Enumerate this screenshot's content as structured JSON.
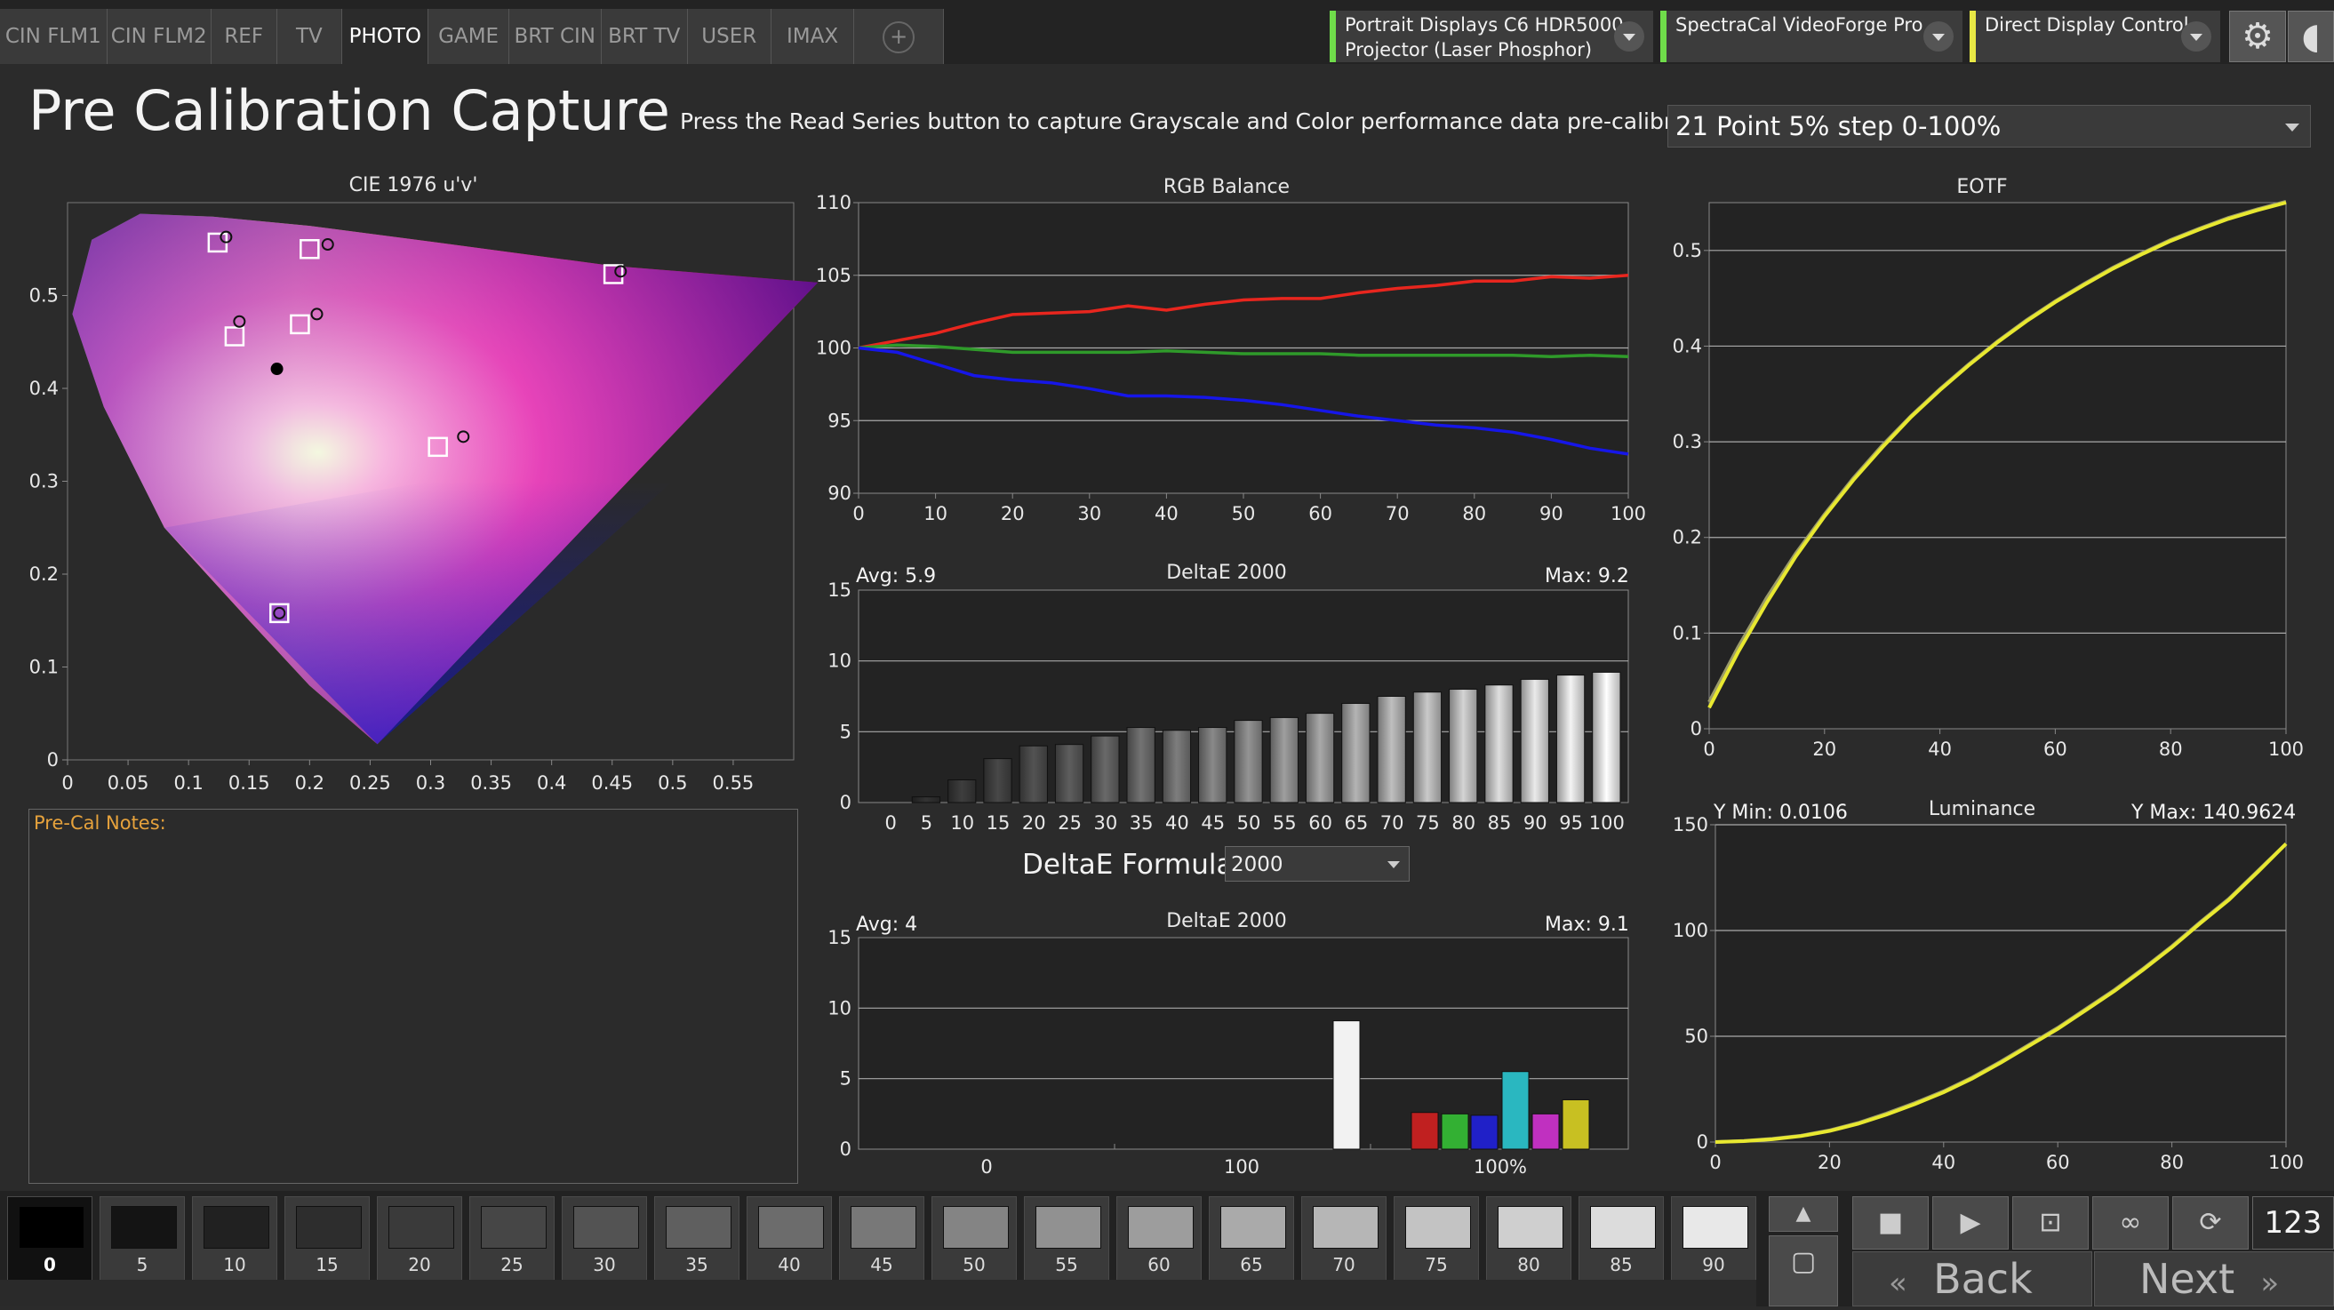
{
  "tabs": [
    "CIN FLM1",
    "CIN FLM2",
    "REF",
    "TV",
    "PHOTO",
    "GAME",
    "BRT CIN",
    "BRT TV",
    "USER",
    "IMAX",
    "+"
  ],
  "active_tab": "PHOTO",
  "devices": [
    {
      "line1": "Portrait Displays C6 HDR5000",
      "line2": "Projector (Laser Phosphor)",
      "color": "#6fdc4a"
    },
    {
      "line1": "SpectraCal VideoForge Pro",
      "line2": "",
      "color": "#6fdc4a"
    },
    {
      "line1": "Direct Display Control",
      "line2": "",
      "color": "#e8e845"
    }
  ],
  "settings_icon": "gear-icon",
  "header": {
    "title": "Pre Calibration Capture",
    "instruction": "Press the Read Series button to capture Grayscale and Color performance data pre-calibration.",
    "series_select": "21 Point 5% step 0-100%"
  },
  "cie": {
    "title": "CIE 1976 u'v'",
    "xticks": [
      "0",
      "0.05",
      "0.1",
      "0.15",
      "0.2",
      "0.25",
      "0.3",
      "0.35",
      "0.4",
      "0.45",
      "0.5",
      "0.55"
    ],
    "yticks": [
      "0",
      "0.1",
      "0.2",
      "0.3",
      "0.4",
      "0.5"
    ]
  },
  "notes": {
    "label": "Pre-Cal Notes:"
  },
  "rgb_balance": {
    "title": "RGB Balance",
    "xticks": [
      "0",
      "10",
      "20",
      "30",
      "40",
      "50",
      "60",
      "70",
      "80",
      "90",
      "100"
    ],
    "yticks": [
      "90",
      "95",
      "100",
      "105",
      "110"
    ]
  },
  "deltae_gray": {
    "title": "DeltaE 2000",
    "avg": "Avg: 5.9",
    "max": "Max: 9.2",
    "yticks": [
      "0",
      "5",
      "10",
      "15"
    ],
    "xticks": [
      "0",
      "5",
      "10",
      "15",
      "20",
      "25",
      "30",
      "35",
      "40",
      "45",
      "50",
      "55",
      "60",
      "65",
      "70",
      "75",
      "80",
      "85",
      "90",
      "95",
      "100"
    ]
  },
  "formula": {
    "label": "DeltaE Formula",
    "value": "2000"
  },
  "deltae_color": {
    "title": "DeltaE 2000",
    "avg": "Avg: 4",
    "max": "Max: 9.1",
    "yticks": [
      "0",
      "5",
      "10",
      "15"
    ],
    "xticks": [
      "0",
      "100",
      "100%"
    ]
  },
  "eotf": {
    "title": "EOTF",
    "xticks": [
      "0",
      "20",
      "40",
      "60",
      "80",
      "100"
    ],
    "yticks": [
      "0",
      "0.1",
      "0.2",
      "0.3",
      "0.4",
      "0.5"
    ]
  },
  "luminance": {
    "title": "Luminance",
    "ymin": "Y Min: 0.0106",
    "ymax": "Y Max: 140.9624",
    "xticks": [
      "0",
      "20",
      "40",
      "60",
      "80",
      "100"
    ],
    "yticks": [
      "0",
      "50",
      "100",
      "150"
    ]
  },
  "swatches": [
    "0",
    "5",
    "10",
    "15",
    "20",
    "25",
    "30",
    "35",
    "40",
    "45",
    "50",
    "55",
    "60",
    "65",
    "70",
    "75",
    "80",
    "85",
    "90"
  ],
  "counter": "123",
  "nav": {
    "back": "Back",
    "next": "Next"
  },
  "chart_data": [
    {
      "type": "scatter",
      "title": "CIE 1976 u'v'",
      "xlim": [
        0,
        0.6
      ],
      "ylim": [
        0,
        0.6
      ],
      "series": [
        {
          "name": "target",
          "points": [
            [
              0.124,
              0.557
            ],
            [
              0.2,
              0.55
            ],
            [
              0.451,
              0.523
            ],
            [
              0.192,
              0.469
            ],
            [
              0.138,
              0.456
            ],
            [
              0.306,
              0.337
            ],
            [
              0.175,
              0.158
            ]
          ]
        },
        {
          "name": "measured",
          "points": [
            [
              0.131,
              0.563
            ],
            [
              0.215,
              0.555
            ],
            [
              0.457,
              0.526
            ],
            [
              0.206,
              0.48
            ],
            [
              0.142,
              0.472
            ],
            [
              0.327,
              0.348
            ],
            [
              0.175,
              0.158
            ],
            [
              0.173,
              0.421
            ]
          ]
        }
      ]
    },
    {
      "type": "line",
      "title": "RGB Balance",
      "x": [
        0,
        5,
        10,
        15,
        20,
        25,
        30,
        35,
        40,
        45,
        50,
        55,
        60,
        65,
        70,
        75,
        80,
        85,
        90,
        95,
        100
      ],
      "ylim": [
        90,
        110
      ],
      "series": [
        {
          "name": "Red",
          "color": "#e8261e",
          "values": [
            100,
            100.5,
            101,
            101.7,
            102.3,
            102.4,
            102.5,
            102.9,
            102.6,
            103,
            103.3,
            103.4,
            103.4,
            103.8,
            104.1,
            104.3,
            104.6,
            104.6,
            104.9,
            104.8,
            105
          ]
        },
        {
          "name": "Green",
          "color": "#2f9a2a",
          "values": [
            100,
            100.2,
            100.1,
            99.9,
            99.7,
            99.7,
            99.7,
            99.7,
            99.8,
            99.7,
            99.6,
            99.6,
            99.6,
            99.5,
            99.5,
            99.5,
            99.5,
            99.5,
            99.4,
            99.5,
            99.4
          ]
        },
        {
          "name": "Blue",
          "color": "#1616e8",
          "values": [
            100,
            99.7,
            98.9,
            98.1,
            97.8,
            97.6,
            97.2,
            96.7,
            96.7,
            96.6,
            96.4,
            96.1,
            95.7,
            95.3,
            95,
            94.7,
            94.5,
            94.2,
            93.7,
            93.1,
            92.7
          ]
        }
      ]
    },
    {
      "type": "bar",
      "title": "DeltaE 2000",
      "categories": [
        "0",
        "5",
        "10",
        "15",
        "20",
        "25",
        "30",
        "35",
        "40",
        "45",
        "50",
        "55",
        "60",
        "65",
        "70",
        "75",
        "80",
        "85",
        "90",
        "95",
        "100"
      ],
      "values": [
        0,
        0.4,
        1.6,
        3.1,
        4.0,
        4.1,
        4.7,
        5.3,
        5.1,
        5.3,
        5.8,
        6.0,
        6.3,
        7.0,
        7.5,
        7.8,
        8.0,
        8.3,
        8.7,
        9.0,
        9.2
      ],
      "ylim": [
        0,
        15
      ]
    },
    {
      "type": "bar",
      "title": "DeltaE 2000",
      "categories": [
        "White",
        "Red",
        "Green",
        "Blue",
        "Cyan",
        "Magenta",
        "Yellow"
      ],
      "values": [
        9.1,
        2.6,
        2.5,
        2.4,
        5.5,
        2.5,
        3.5
      ],
      "colors": [
        "#f2f2f2",
        "#c02020",
        "#33b033",
        "#2020c8",
        "#2ab7c0",
        "#c030c0",
        "#c8c022"
      ],
      "ylim": [
        0,
        15
      ]
    },
    {
      "type": "line",
      "title": "EOTF",
      "x": [
        0,
        5,
        10,
        15,
        20,
        25,
        30,
        35,
        40,
        45,
        50,
        55,
        60,
        65,
        70,
        75,
        80,
        85,
        90,
        95,
        100
      ],
      "xlim": [
        0,
        100
      ],
      "ylim": [
        0,
        0.55
      ],
      "series": [
        {
          "name": "target",
          "color": "#9a9a6a",
          "values": [
            0.028,
            0.085,
            0.137,
            0.183,
            0.224,
            0.262,
            0.296,
            0.327,
            0.355,
            0.381,
            0.405,
            0.427,
            0.447,
            0.465,
            0.482,
            0.497,
            0.511,
            0.523,
            0.534,
            0.543,
            0.551
          ]
        },
        {
          "name": "measured",
          "color": "#e8e830",
          "values": [
            0.022,
            0.08,
            0.132,
            0.18,
            0.222,
            0.26,
            0.294,
            0.326,
            0.354,
            0.38,
            0.404,
            0.426,
            0.446,
            0.464,
            0.481,
            0.496,
            0.51,
            0.522,
            0.533,
            0.542,
            0.55
          ]
        }
      ]
    },
    {
      "type": "line",
      "title": "Luminance",
      "x": [
        0,
        5,
        10,
        15,
        20,
        25,
        30,
        35,
        40,
        45,
        50,
        55,
        60,
        65,
        70,
        75,
        80,
        85,
        90,
        95,
        100
      ],
      "xlim": [
        0,
        100
      ],
      "ylim": [
        0,
        150
      ],
      "series": [
        {
          "name": "target",
          "color": "#9a9a6a",
          "values": [
            0,
            0.5,
            1.5,
            3,
            5.5,
            9,
            13.5,
            18.5,
            24,
            30.5,
            38,
            46,
            54,
            63,
            72,
            82,
            92.5,
            104,
            115,
            128,
            141
          ]
        },
        {
          "name": "measured",
          "color": "#e8e830",
          "values": [
            0.01,
            0.4,
            1.3,
            2.8,
            5.2,
            8.6,
            13,
            18,
            23.5,
            30,
            37.5,
            45.5,
            53.5,
            62.5,
            71.5,
            81.5,
            92,
            103.5,
            114.5,
            127.5,
            140.96
          ]
        }
      ]
    }
  ]
}
